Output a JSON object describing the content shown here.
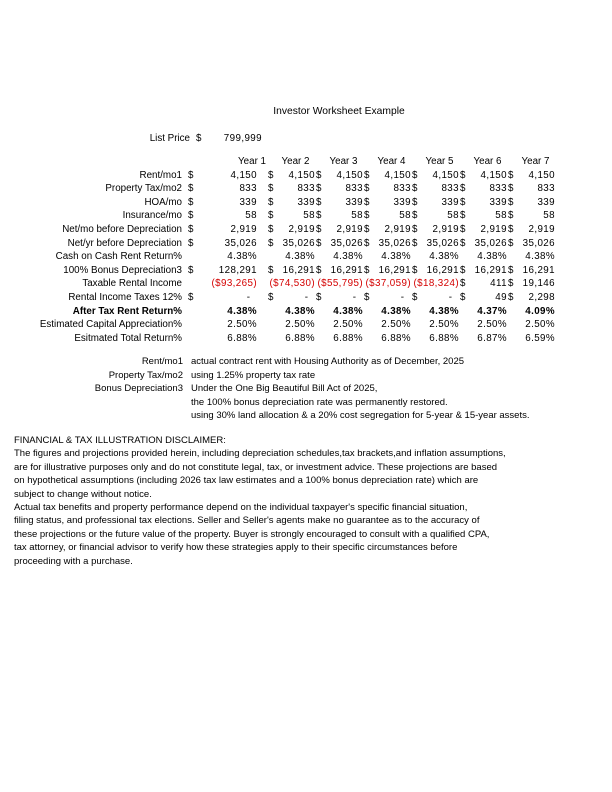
{
  "page": {
    "title": "Investor Worksheet Example"
  },
  "list_price": {
    "label": "List Price",
    "currency": "$",
    "value": "799,999"
  },
  "colors": {
    "negative_value": "#d40000",
    "text": "#000000",
    "background": "#ffffff"
  },
  "table": {
    "years": [
      "Year 1",
      "Year 2",
      "Year 3",
      "Year 4",
      "Year 5",
      "Year 6",
      "Year 7"
    ],
    "rows": [
      {
        "label": "Rent/mo1",
        "cells": [
          {
            "d": "$",
            "v": "4,150"
          },
          {
            "d": "$",
            "v": "4,150"
          },
          {
            "d": "$",
            "v": "4,150"
          },
          {
            "d": "$",
            "v": "4,150"
          },
          {
            "d": "$",
            "v": "4,150"
          },
          {
            "d": "$",
            "v": "4,150"
          },
          {
            "d": "$",
            "v": "4,150"
          }
        ]
      },
      {
        "label": "Property Tax/mo2",
        "cells": [
          {
            "d": "$",
            "v": "833"
          },
          {
            "d": "$",
            "v": "833"
          },
          {
            "d": "$",
            "v": "833"
          },
          {
            "d": "$",
            "v": "833"
          },
          {
            "d": "$",
            "v": "833"
          },
          {
            "d": "$",
            "v": "833"
          },
          {
            "d": "$",
            "v": "833"
          }
        ]
      },
      {
        "label": "HOA/mo",
        "cells": [
          {
            "d": "$",
            "v": "339"
          },
          {
            "d": "$",
            "v": "339"
          },
          {
            "d": "$",
            "v": "339"
          },
          {
            "d": "$",
            "v": "339"
          },
          {
            "d": "$",
            "v": "339"
          },
          {
            "d": "$",
            "v": "339"
          },
          {
            "d": "$",
            "v": "339"
          }
        ]
      },
      {
        "label": "Insurance/mo",
        "cells": [
          {
            "d": "$",
            "v": "58"
          },
          {
            "d": "$",
            "v": "58"
          },
          {
            "d": "$",
            "v": "58"
          },
          {
            "d": "$",
            "v": "58"
          },
          {
            "d": "$",
            "v": "58"
          },
          {
            "d": "$",
            "v": "58"
          },
          {
            "d": "$",
            "v": "58"
          }
        ]
      },
      {
        "label": "Net/mo before Depreciation",
        "cells": [
          {
            "d": "$",
            "v": "2,919"
          },
          {
            "d": "$",
            "v": "2,919"
          },
          {
            "d": "$",
            "v": "2,919"
          },
          {
            "d": "$",
            "v": "2,919"
          },
          {
            "d": "$",
            "v": "2,919"
          },
          {
            "d": "$",
            "v": "2,919"
          },
          {
            "d": "$",
            "v": "2,919"
          }
        ]
      },
      {
        "label": "Net/yr before Depreciation",
        "cells": [
          {
            "d": "$",
            "v": "35,026"
          },
          {
            "d": "$",
            "v": "35,026"
          },
          {
            "d": "$",
            "v": "35,026"
          },
          {
            "d": "$",
            "v": "35,026"
          },
          {
            "d": "$",
            "v": "35,026"
          },
          {
            "d": "$",
            "v": "35,026"
          },
          {
            "d": "$",
            "v": "35,026"
          }
        ]
      },
      {
        "label": "Cash on Cash Rent Return%",
        "cells": [
          {
            "v": "4.38%"
          },
          {
            "v": "4.38%"
          },
          {
            "v": "4.38%"
          },
          {
            "v": "4.38%"
          },
          {
            "v": "4.38%"
          },
          {
            "v": "4.38%"
          },
          {
            "v": "4.38%"
          }
        ]
      },
      {
        "label": "100% Bonus Depreciation3",
        "cells": [
          {
            "d": "$",
            "v": "128,291"
          },
          {
            "d": "$",
            "v": "16,291"
          },
          {
            "d": "$",
            "v": "16,291"
          },
          {
            "d": "$",
            "v": "16,291"
          },
          {
            "d": "$",
            "v": "16,291"
          },
          {
            "d": "$",
            "v": "16,291"
          },
          {
            "d": "$",
            "v": "16,291"
          }
        ]
      },
      {
        "label": "Taxable Rental Income",
        "cells": [
          {
            "v": "($93,265)",
            "c": "neg"
          },
          {
            "v": "($74,530)",
            "c": "neg"
          },
          {
            "v": "($55,795)",
            "c": "neg"
          },
          {
            "v": "($37,059)",
            "c": "neg"
          },
          {
            "v": "($18,324)",
            "c": "neg"
          },
          {
            "d": "$",
            "v": "411"
          },
          {
            "d": "$",
            "v": "19,146"
          }
        ]
      },
      {
        "label": "Rental Income Taxes 12%",
        "cells": [
          {
            "d": "$",
            "v": "-",
            "c": "dash"
          },
          {
            "d": "$",
            "v": "-",
            "c": "dash"
          },
          {
            "d": "$",
            "v": "-",
            "c": "dash"
          },
          {
            "d": "$",
            "v": "-",
            "c": "dash"
          },
          {
            "d": "$",
            "v": "-",
            "c": "dash"
          },
          {
            "d": "$",
            "v": "49"
          },
          {
            "d": "$",
            "v": "2,298"
          }
        ]
      },
      {
        "label": "After Tax Rent Return%",
        "c": "bold",
        "cells": [
          {
            "v": "4.38%"
          },
          {
            "v": "4.38%"
          },
          {
            "v": "4.38%"
          },
          {
            "v": "4.38%"
          },
          {
            "v": "4.38%"
          },
          {
            "v": "4.37%"
          },
          {
            "v": "4.09%"
          }
        ]
      },
      {
        "label": "Estimated Capital Appreciation%",
        "cells": [
          {
            "v": "2.50%"
          },
          {
            "v": "2.50%"
          },
          {
            "v": "2.50%"
          },
          {
            "v": "2.50%"
          },
          {
            "v": "2.50%"
          },
          {
            "v": "2.50%"
          },
          {
            "v": "2.50%"
          }
        ]
      },
      {
        "label": "Esitmated Total Return%",
        "cells": [
          {
            "v": "6.88%"
          },
          {
            "v": "6.88%"
          },
          {
            "v": "6.88%"
          },
          {
            "v": "6.88%"
          },
          {
            "v": "6.88%"
          },
          {
            "v": "6.87%"
          },
          {
            "v": "6.59%"
          }
        ]
      }
    ]
  },
  "footnotes": [
    {
      "label": "Rent/mo1",
      "text": "actual contract rent with Housing Authority as of December, 2025"
    },
    {
      "label": "Property Tax/mo2",
      "text": "using 1.25% property tax rate"
    },
    {
      "label": "Bonus Depreciation3",
      "text": "Under the One Big Beautiful Bill Act of 2025,"
    },
    {
      "label": "",
      "text": "the 100% bonus depreciation rate was permanently restored."
    },
    {
      "label": "",
      "text": "using 30% land allocation & a 20% cost segregation for 5-year & 15-year assets."
    }
  ],
  "disclaimer": {
    "heading": "FINANCIAL & TAX ILLUSTRATION DISCLAIMER:",
    "lines": [
      "The figures and projections provided herein, including depreciation schedules,tax brackets,and inflation assumptions,",
      "are for illustrative purposes only and do not constitute legal, tax, or investment advice. These projections are based",
      "on hypothetical assumptions (including 2026 tax law estimates and a 100% bonus depreciation rate) which are",
      "subject to change without notice.",
      "Actual tax benefits and property performance depend on the individual taxpayer's specific financial situation,",
      "filing status, and professional tax elections. Seller and Seller's agents make no guarantee as to the accuracy of",
      "these projections or the future value of the property. Buyer is strongly encouraged to consult with a qualified CPA,",
      "tax attorney, or financial advisor to verify how these strategies apply to their specific circumstances before",
      "proceeding with a purchase."
    ]
  }
}
